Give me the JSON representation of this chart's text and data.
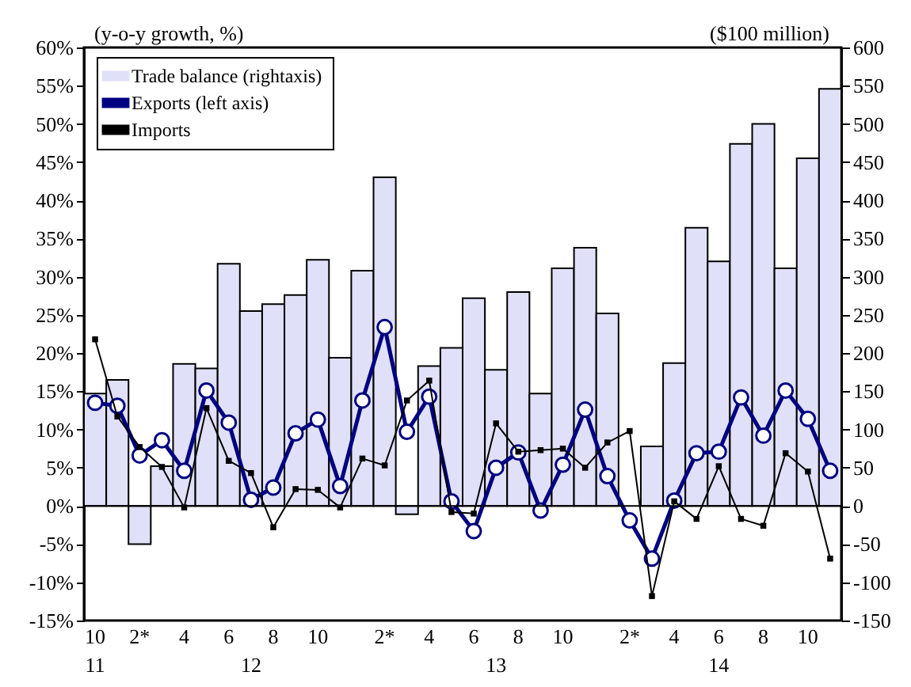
{
  "chart_data": {
    "type": "bar",
    "ylabel": "(y-o-y growth, %)",
    "y2label": "($100 million)",
    "categories": [
      "10\n11",
      null,
      "2*",
      null,
      "4",
      null,
      "6",
      "\n12",
      "8",
      null,
      "10",
      null,
      null,
      "2*",
      null,
      "4",
      null,
      "6",
      "\n13",
      "8",
      null,
      "10",
      null,
      null,
      "2*",
      null,
      "4",
      null,
      "6\n14",
      null,
      "8",
      null,
      "10",
      null
    ],
    "series": [
      {
        "name": "Trade balance (rightaxis)",
        "axis": "y2",
        "color": "#e0e0f8",
        "values": [
          147,
          165,
          -50,
          52,
          186,
          180,
          317,
          255,
          264,
          276,
          322,
          194,
          308,
          430,
          -11,
          183,
          207,
          272,
          178,
          280,
          147,
          311,
          338,
          252,
          null,
          78,
          187,
          364,
          320,
          474,
          500,
          311,
          455,
          546
        ]
      },
      {
        "name": "Exports (left axis)",
        "type": "line",
        "axis": "y",
        "color": "#000080",
        "marker": "circle",
        "values": [
          13.5,
          13.1,
          6.6,
          8.6,
          4.6,
          15.1,
          10.9,
          0.8,
          2.4,
          9.5,
          11.3,
          2.6,
          13.8,
          23.4,
          9.7,
          14.3,
          0.6,
          -3.3,
          5.0,
          7.0,
          -0.6,
          5.4,
          12.6,
          3.9,
          -1.9,
          -6.9,
          0.7,
          6.9,
          7.1,
          14.2,
          9.2,
          15.1,
          11.4,
          4.6
        ]
      },
      {
        "name": "Imports",
        "type": "line",
        "axis": "y",
        "color": "#000000",
        "marker": "square",
        "values": [
          21.8,
          11.7,
          7.7,
          5.1,
          -0.2,
          12.8,
          5.9,
          4.3,
          -2.8,
          2.2,
          2.1,
          -0.2,
          6.2,
          5.3,
          13.8,
          16.4,
          -0.8,
          -1.0,
          10.8,
          7.1,
          7.3,
          7.5,
          5.0,
          8.3,
          9.8,
          -11.8,
          0.6,
          -1.7,
          5.2,
          -1.7,
          -2.6,
          6.9,
          4.5,
          -6.9
        ]
      }
    ],
    "ylim": [
      -15,
      60
    ],
    "yticks": [
      {
        "value": -15,
        "label": "-15%"
      },
      {
        "value": -10,
        "label": "-10%"
      },
      {
        "value": -5,
        "label": "-5%"
      },
      {
        "value": 0,
        "label": "0%"
      },
      {
        "value": 5,
        "label": "5%"
      },
      {
        "value": 10,
        "label": "10%"
      },
      {
        "value": 15,
        "label": "15%"
      },
      {
        "value": 20,
        "label": "20%"
      },
      {
        "value": 25,
        "label": "25%"
      },
      {
        "value": 30,
        "label": "30%"
      },
      {
        "value": 35,
        "label": "35%"
      },
      {
        "value": 40,
        "label": "40%"
      },
      {
        "value": 45,
        "label": "45%"
      },
      {
        "value": 50,
        "label": "50%"
      },
      {
        "value": 55,
        "label": "55%"
      },
      {
        "value": 60,
        "label": "60%"
      }
    ],
    "y2lim": [
      -150,
      600
    ],
    "y2ticks": [
      -150,
      -100,
      -50,
      0,
      50,
      100,
      150,
      200,
      250,
      300,
      350,
      400,
      450,
      500,
      550,
      600
    ],
    "ref_lines": [
      {
        "axis": "y",
        "value": 0,
        "color": "#000000"
      }
    ],
    "legend": "top left"
  }
}
